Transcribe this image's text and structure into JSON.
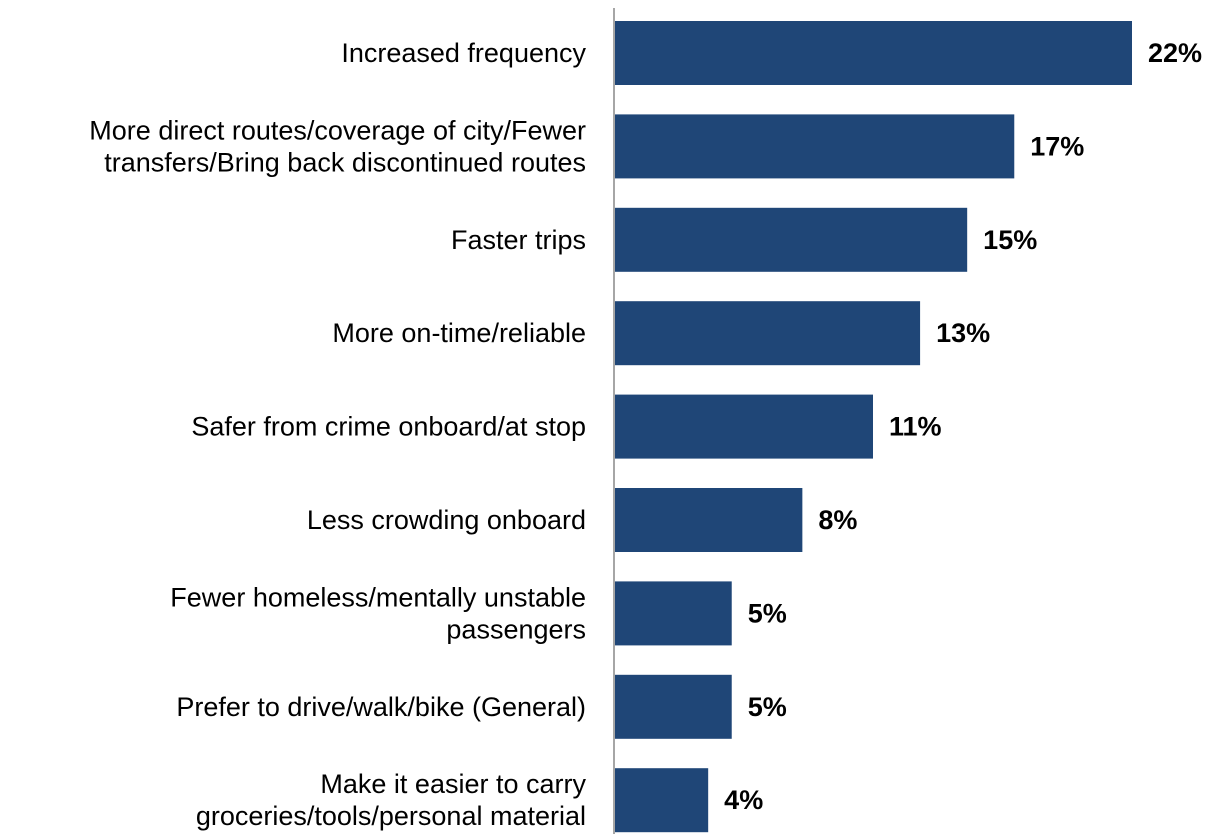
{
  "chart_data": {
    "type": "bar",
    "orientation": "horizontal",
    "categories": [
      [
        "Increased frequency"
      ],
      [
        "More direct routes/coverage of city/Fewer",
        "transfers/Bring back discontinued routes"
      ],
      [
        "Faster trips"
      ],
      [
        "More on-time/reliable"
      ],
      [
        "Safer from crime onboard/at stop"
      ],
      [
        "Less crowding onboard"
      ],
      [
        "Fewer homeless/mentally unstable",
        "passengers"
      ],
      [
        "Prefer to drive/walk/bike (General)"
      ],
      [
        "Make it easier to carry",
        "groceries/tools/personal material"
      ]
    ],
    "values": [
      22,
      17,
      15,
      13,
      11,
      8,
      5,
      5,
      4
    ],
    "value_labels": [
      "22%",
      "17%",
      "15%",
      "13%",
      "11%",
      "8%",
      "5%",
      "5%",
      "4%"
    ],
    "title": "",
    "xlabel": "",
    "ylabel": "",
    "xlim": [
      0,
      22
    ],
    "grid": false,
    "legend": "none",
    "bar_color": "#1f4677",
    "axis_color": "#a6a6a6"
  }
}
